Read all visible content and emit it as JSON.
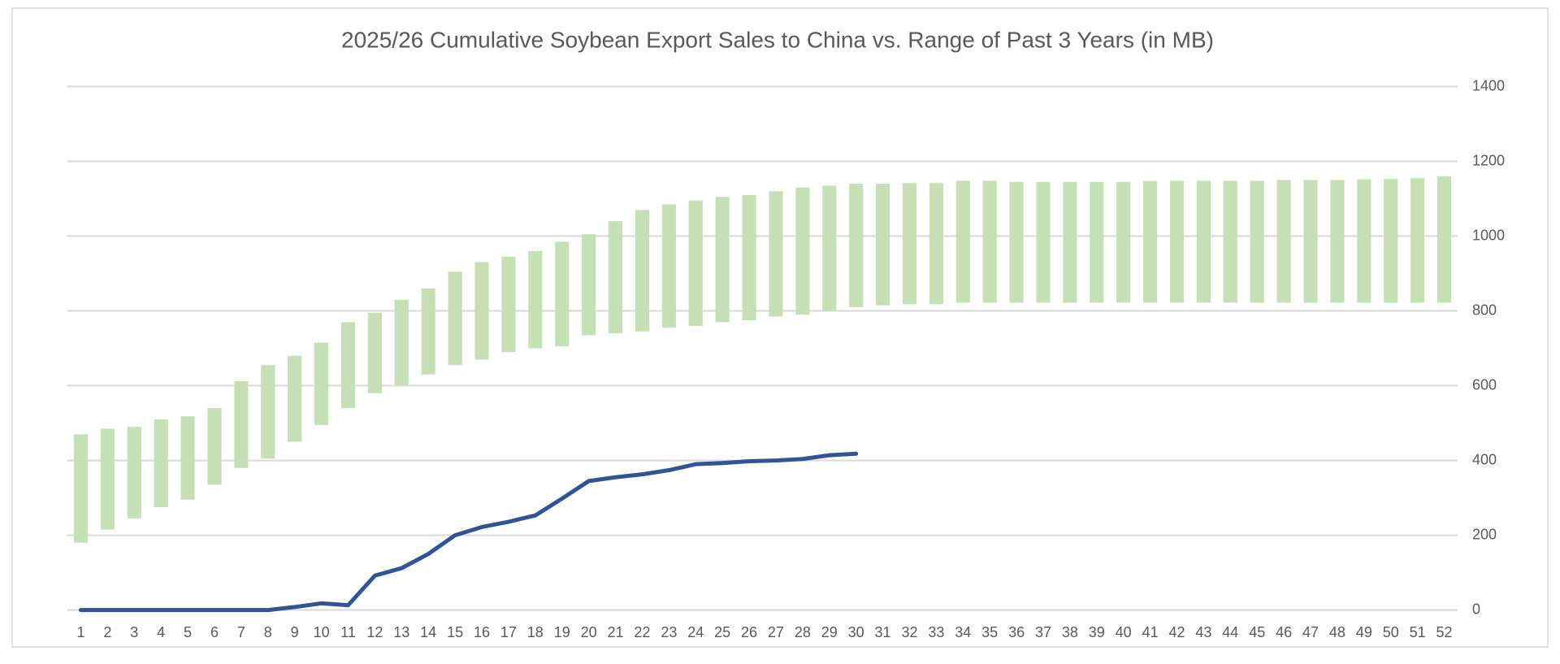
{
  "chart_data": {
    "type": "combo",
    "title": "2025/26 Cumulative Soybean Export Sales to China vs. Range of Past 3 Years (in MB)",
    "categories": [
      1,
      2,
      3,
      4,
      5,
      6,
      7,
      8,
      9,
      10,
      11,
      12,
      13,
      14,
      15,
      16,
      17,
      18,
      19,
      20,
      21,
      22,
      23,
      24,
      25,
      26,
      27,
      28,
      29,
      30,
      31,
      32,
      33,
      34,
      35,
      36,
      37,
      38,
      39,
      40,
      41,
      42,
      43,
      44,
      45,
      46,
      47,
      48,
      49,
      50,
      51,
      52
    ],
    "series": [
      {
        "type": "range_bar",
        "color": "#c5e0b4",
        "low": [
          180,
          215,
          245,
          275,
          295,
          335,
          380,
          405,
          450,
          495,
          540,
          580,
          600,
          630,
          655,
          670,
          690,
          700,
          705,
          735,
          740,
          745,
          755,
          760,
          770,
          775,
          785,
          790,
          800,
          810,
          815,
          818,
          818,
          822,
          822,
          822,
          822,
          822,
          822,
          822,
          822,
          822,
          822,
          822,
          822,
          822,
          822,
          822,
          822,
          822,
          822,
          822
        ],
        "high": [
          470,
          485,
          490,
          510,
          518,
          540,
          612,
          655,
          680,
          715,
          770,
          795,
          830,
          860,
          905,
          930,
          945,
          960,
          985,
          1005,
          1040,
          1070,
          1085,
          1095,
          1105,
          1110,
          1120,
          1130,
          1135,
          1140,
          1140,
          1142,
          1142,
          1148,
          1148,
          1145,
          1145,
          1145,
          1145,
          1145,
          1147,
          1148,
          1148,
          1148,
          1148,
          1150,
          1150,
          1150,
          1152,
          1153,
          1155,
          1160
        ]
      },
      {
        "type": "line",
        "color": "#2f5597",
        "values": [
          0,
          0,
          0,
          0,
          0,
          0,
          0,
          0,
          8,
          18,
          13,
          92,
          112,
          150,
          200,
          222,
          236,
          253,
          298,
          345,
          355,
          363,
          374,
          390,
          393,
          398,
          400,
          404,
          414,
          418,
          null,
          null,
          null,
          null,
          null,
          null,
          null,
          null,
          null,
          null,
          null,
          null,
          null,
          null,
          null,
          null,
          null,
          null,
          null,
          null,
          null,
          null
        ]
      }
    ],
    "ylim": [
      0,
      1400
    ],
    "yticks": [
      0,
      200,
      400,
      600,
      800,
      1000,
      1200,
      1400
    ],
    "grid": true,
    "y_axis_side": "right"
  }
}
